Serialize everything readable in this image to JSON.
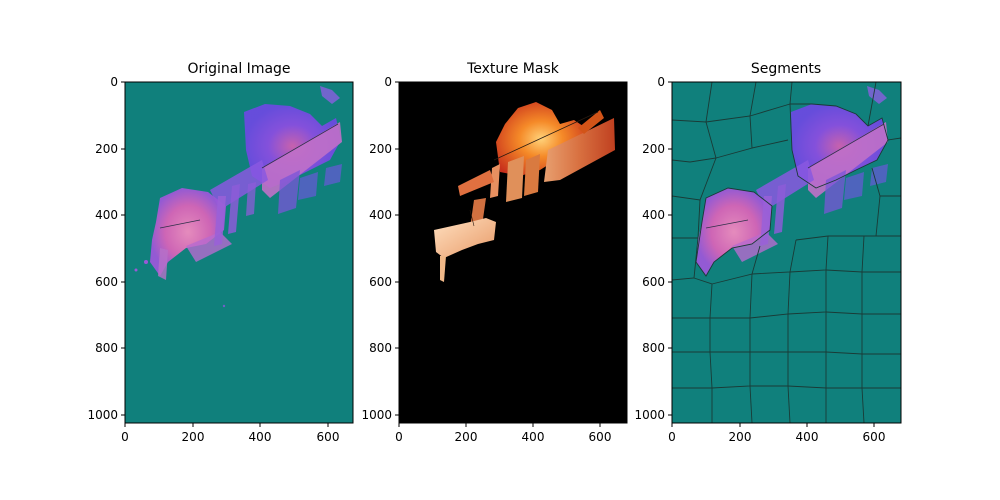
{
  "figure": {
    "panels": [
      {
        "title": "Original Image",
        "x_ticks": [
          "0",
          "200",
          "400",
          "600"
        ],
        "y_ticks": [
          "0",
          "200",
          "400",
          "600",
          "800",
          "1000"
        ]
      },
      {
        "title": "Texture Mask",
        "x_ticks": [
          "0",
          "200",
          "400",
          "600"
        ],
        "y_ticks": [
          "0",
          "200",
          "400",
          "600",
          "800",
          "1000"
        ]
      },
      {
        "title": "Segments",
        "x_ticks": [
          "0",
          "200",
          "400",
          "600"
        ],
        "y_ticks": [
          "0",
          "200",
          "400",
          "600",
          "800",
          "1000"
        ]
      }
    ]
  },
  "colors": {
    "background_teal": "#10807c",
    "mask_black": "#000000",
    "purple": "#7a4ce0",
    "pink": "#e070c0",
    "orange": "#f07020",
    "segment_line": "#1a3a36"
  }
}
